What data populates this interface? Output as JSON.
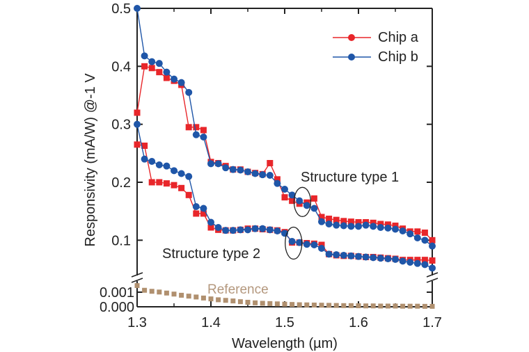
{
  "chart_data": {
    "type": "line",
    "xlabel": "Wavelength (µm)",
    "ylabel": "Responsivity (mA/W) @-1 V",
    "xlim": [
      1.3,
      1.7
    ],
    "ylim_upper": [
      0.05,
      0.5
    ],
    "ylim_lower": [
      0.0,
      0.0015
    ],
    "broken_y_axis": true,
    "x_ticks": [
      "1.3",
      "1.4",
      "1.5",
      "1.6",
      "1.7"
    ],
    "y_ticks_upper": [
      "0.5",
      "0.4",
      "0.3",
      "0.2",
      "0.1"
    ],
    "y_ticks_lower": [
      "0.001",
      "0.000"
    ],
    "legend": {
      "placement": "top-right",
      "entries": [
        {
          "name": "Chip a",
          "color": "#e8262a"
        },
        {
          "name": "Chip b",
          "color": "#1f56a8"
        }
      ]
    },
    "annotations": [
      {
        "text": "Structure type 1",
        "near_x": 1.52
      },
      {
        "text": "Structure type 2",
        "near_x": 1.51
      },
      {
        "text": "Reference",
        "near_x": 1.42
      }
    ],
    "x": [
      1.3,
      1.31,
      1.32,
      1.33,
      1.34,
      1.35,
      1.36,
      1.37,
      1.38,
      1.39,
      1.4,
      1.41,
      1.42,
      1.43,
      1.44,
      1.45,
      1.46,
      1.47,
      1.48,
      1.49,
      1.5,
      1.51,
      1.52,
      1.53,
      1.54,
      1.55,
      1.56,
      1.57,
      1.58,
      1.59,
      1.6,
      1.61,
      1.62,
      1.63,
      1.64,
      1.65,
      1.66,
      1.67,
      1.68,
      1.69,
      1.7
    ],
    "series": [
      {
        "name": "Chip a - Structure type 1",
        "color": "#e8262a",
        "marker": "square",
        "panel": "upper",
        "values": [
          0.32,
          0.4,
          0.397,
          0.39,
          0.38,
          0.375,
          0.368,
          0.295,
          0.295,
          0.29,
          0.235,
          0.233,
          0.228,
          0.222,
          0.222,
          0.218,
          0.216,
          0.214,
          0.233,
          0.205,
          0.174,
          0.168,
          0.163,
          0.165,
          0.172,
          0.14,
          0.137,
          0.135,
          0.133,
          0.132,
          0.131,
          0.131,
          0.13,
          0.128,
          0.127,
          0.125,
          0.12,
          0.115,
          0.115,
          0.113,
          0.1
        ]
      },
      {
        "name": "Chip b - Structure type 1",
        "color": "#1f56a8",
        "marker": "circle",
        "panel": "upper",
        "values": [
          0.5,
          0.418,
          0.408,
          0.405,
          0.39,
          0.378,
          0.372,
          0.355,
          0.282,
          0.278,
          0.232,
          0.232,
          0.225,
          0.222,
          0.221,
          0.218,
          0.215,
          0.213,
          0.212,
          0.198,
          0.188,
          0.178,
          0.168,
          0.16,
          0.155,
          0.132,
          0.128,
          0.126,
          0.125,
          0.124,
          0.124,
          0.126,
          0.124,
          0.122,
          0.121,
          0.119,
          0.116,
          0.111,
          0.104,
          0.1,
          0.09
        ]
      },
      {
        "name": "Chip a - Structure type 2",
        "color": "#e8262a",
        "marker": "square",
        "panel": "upper",
        "values": [
          0.265,
          0.263,
          0.2,
          0.2,
          0.198,
          0.195,
          0.19,
          0.178,
          0.146,
          0.146,
          0.122,
          0.118,
          0.117,
          0.117,
          0.118,
          0.12,
          0.12,
          0.119,
          0.118,
          0.117,
          0.114,
          0.096,
          0.096,
          0.095,
          0.094,
          0.092,
          0.076,
          0.074,
          0.073,
          0.073,
          0.072,
          0.071,
          0.071,
          0.07,
          0.069,
          0.068,
          0.066,
          0.066,
          0.066,
          0.066,
          0.065
        ]
      },
      {
        "name": "Chip b - Structure type 2",
        "color": "#1f56a8",
        "marker": "circle",
        "panel": "upper",
        "values": [
          0.3,
          0.24,
          0.236,
          0.23,
          0.228,
          0.22,
          0.215,
          0.21,
          0.158,
          0.155,
          0.131,
          0.122,
          0.117,
          0.117,
          0.118,
          0.118,
          0.12,
          0.12,
          0.118,
          0.116,
          0.112,
          0.098,
          0.096,
          0.093,
          0.092,
          0.086,
          0.076,
          0.075,
          0.074,
          0.073,
          0.072,
          0.071,
          0.07,
          0.069,
          0.068,
          0.067,
          0.064,
          0.062,
          0.06,
          0.058,
          0.052
        ]
      },
      {
        "name": "Reference",
        "color": "#b0906f",
        "marker": "square",
        "panel": "lower",
        "values": [
          0.00145,
          0.00113,
          0.00106,
          0.00101,
          0.00094,
          0.00087,
          0.00079,
          0.00073,
          0.00067,
          0.0006,
          0.00054,
          0.00048,
          0.00044,
          0.0004,
          0.00035,
          0.00031,
          0.00027,
          0.00024,
          0.00022,
          0.0002,
          0.00018,
          0.00016,
          0.00014,
          0.00013,
          0.00012,
          0.00011,
          0.0001,
          9e-05,
          8e-05,
          8e-05,
          7e-05,
          6e-05,
          6e-05,
          5e-05,
          5e-05,
          5e-05,
          4e-05,
          4e-05,
          4e-05,
          3e-05,
          3e-05
        ]
      }
    ]
  }
}
